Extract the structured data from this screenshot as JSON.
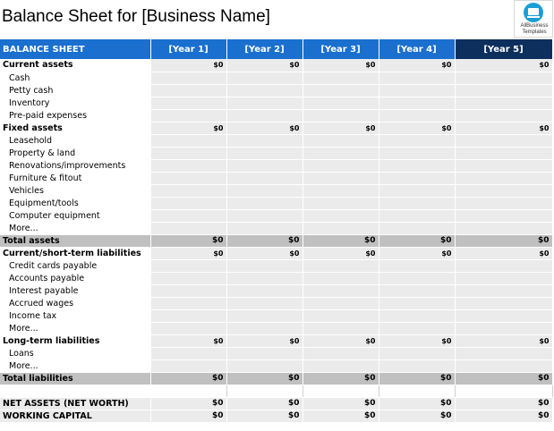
{
  "title": "Balance Sheet for [Business Name]",
  "logo": {
    "line1": "AllBusiness",
    "line2": "Templates"
  },
  "header": {
    "label": "BALANCE SHEET",
    "years": [
      "[Year 1]",
      "[Year 2]",
      "[Year 3]",
      "[Year 4]",
      "[Year 5]"
    ]
  },
  "colors": {
    "header_blue": "#1a6fcf",
    "header_dark": "#0d2f5e",
    "total_gray": "#c0c0c0",
    "cell_gray": "#ebebeb"
  },
  "rows": [
    {
      "type": "section",
      "label": "Current assets",
      "values": [
        "$0",
        "$0",
        "$0",
        "$0",
        "$0"
      ]
    },
    {
      "type": "item",
      "label": "Cash"
    },
    {
      "type": "item",
      "label": "Petty cash"
    },
    {
      "type": "item",
      "label": "Inventory"
    },
    {
      "type": "item",
      "label": "Pre-paid expenses"
    },
    {
      "type": "section",
      "label": "Fixed assets",
      "values": [
        "$0",
        "$0",
        "$0",
        "$0",
        "$0"
      ]
    },
    {
      "type": "item",
      "label": "Leasehold"
    },
    {
      "type": "item",
      "label": "Property & land"
    },
    {
      "type": "item",
      "label": "Renovations/improvements"
    },
    {
      "type": "item",
      "label": "Furniture & fitout"
    },
    {
      "type": "item",
      "label": "Vehicles"
    },
    {
      "type": "item",
      "label": "Equipment/tools"
    },
    {
      "type": "item",
      "label": "Computer equipment"
    },
    {
      "type": "item",
      "label": "More..."
    },
    {
      "type": "total",
      "label": "Total assets",
      "values": [
        "$0",
        "$0",
        "$0",
        "$0",
        "$0"
      ]
    },
    {
      "type": "section",
      "label": "Current/short-term liabilities",
      "values": [
        "$0",
        "$0",
        "$0",
        "$0",
        "$0"
      ]
    },
    {
      "type": "item",
      "label": "Credit cards payable"
    },
    {
      "type": "item",
      "label": "Accounts payable"
    },
    {
      "type": "item",
      "label": "Interest payable"
    },
    {
      "type": "item",
      "label": "Accrued wages"
    },
    {
      "type": "item",
      "label": "Income tax"
    },
    {
      "type": "item",
      "label": "More..."
    },
    {
      "type": "section",
      "label": "Long-term liabilities",
      "values": [
        "$0",
        "$0",
        "$0",
        "$0",
        "$0"
      ]
    },
    {
      "type": "item",
      "label": "Loans"
    },
    {
      "type": "item",
      "label": "More..."
    },
    {
      "type": "total",
      "label": "Total liabilities",
      "values": [
        "$0",
        "$0",
        "$0",
        "$0",
        "$0"
      ]
    },
    {
      "type": "blank",
      "label": ""
    },
    {
      "type": "net",
      "label": "NET ASSETS (NET WORTH)",
      "values": [
        "$0",
        "$0",
        "$0",
        "$0",
        "$0"
      ]
    },
    {
      "type": "net",
      "label": "WORKING CAPITAL",
      "values": [
        "$0",
        "$0",
        "$0",
        "$0",
        "$0"
      ]
    }
  ]
}
